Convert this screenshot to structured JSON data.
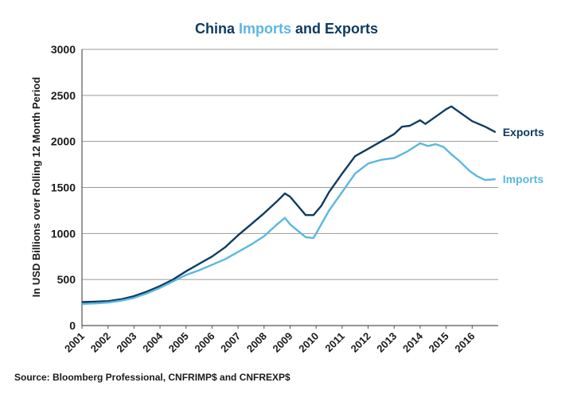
{
  "chart_data": {
    "type": "line",
    "title_parts": [
      {
        "text": "China ",
        "color": "#0f3b60"
      },
      {
        "text": "Imports",
        "color": "#5bb7e0"
      },
      {
        "text": " and Exports",
        "color": "#0f3b60"
      }
    ],
    "ylabel": "In USD Billions over Rolling 12 Month Period",
    "ylim": [
      0,
      3000
    ],
    "yticks": [
      0,
      500,
      1000,
      1500,
      2000,
      2500,
      3000
    ],
    "xlim": [
      2001,
      2017
    ],
    "xticks": [
      "2001",
      "2002",
      "2003",
      "2004",
      "2005",
      "2006",
      "2007",
      "2008",
      "2009",
      "2010",
      "2011",
      "2012",
      "2013",
      "2014",
      "2015",
      "2016"
    ],
    "grid": true,
    "series": [
      {
        "name": "Exports",
        "color": "#0f3b60",
        "x": [
          2001,
          2001.5,
          2002,
          2002.5,
          2003,
          2003.5,
          2004,
          2004.5,
          2005,
          2005.5,
          2006,
          2006.5,
          2007,
          2007.5,
          2008,
          2008.5,
          2008.8,
          2009,
          2009.3,
          2009.6,
          2009.9,
          2010.2,
          2010.5,
          2011,
          2011.5,
          2012,
          2012.5,
          2013,
          2013.3,
          2013.6,
          2014,
          2014.2,
          2014.5,
          2015,
          2015.2,
          2015.5,
          2016,
          2016.5,
          2016.9
        ],
        "values": [
          255,
          260,
          265,
          285,
          320,
          370,
          430,
          500,
          590,
          670,
          750,
          850,
          980,
          1100,
          1220,
          1350,
          1435,
          1400,
          1300,
          1200,
          1200,
          1300,
          1450,
          1650,
          1840,
          1920,
          2000,
          2080,
          2160,
          2170,
          2230,
          2190,
          2250,
          2350,
          2380,
          2320,
          2220,
          2160,
          2100
        ]
      },
      {
        "name": "Imports",
        "color": "#5bb7e0",
        "x": [
          2001,
          2001.5,
          2002,
          2002.5,
          2003,
          2003.5,
          2004,
          2004.5,
          2005,
          2005.5,
          2006,
          2006.5,
          2007,
          2007.5,
          2008,
          2008.5,
          2008.8,
          2009,
          2009.3,
          2009.6,
          2009.9,
          2010.2,
          2010.5,
          2011,
          2011.5,
          2012,
          2012.5,
          2013,
          2013.5,
          2014,
          2014.3,
          2014.6,
          2014.9,
          2015.2,
          2015.5,
          2015.9,
          2016.2,
          2016.5,
          2016.9
        ],
        "values": [
          235,
          240,
          250,
          270,
          300,
          350,
          410,
          480,
          550,
          600,
          660,
          720,
          800,
          880,
          970,
          1100,
          1170,
          1100,
          1030,
          960,
          950,
          1100,
          1250,
          1450,
          1650,
          1760,
          1800,
          1820,
          1890,
          1980,
          1950,
          1970,
          1940,
          1860,
          1790,
          1680,
          1620,
          1580,
          1590
        ]
      }
    ],
    "source": "Source: Bloomberg Professional, CNFRIMP$ and CNFREXP$"
  }
}
